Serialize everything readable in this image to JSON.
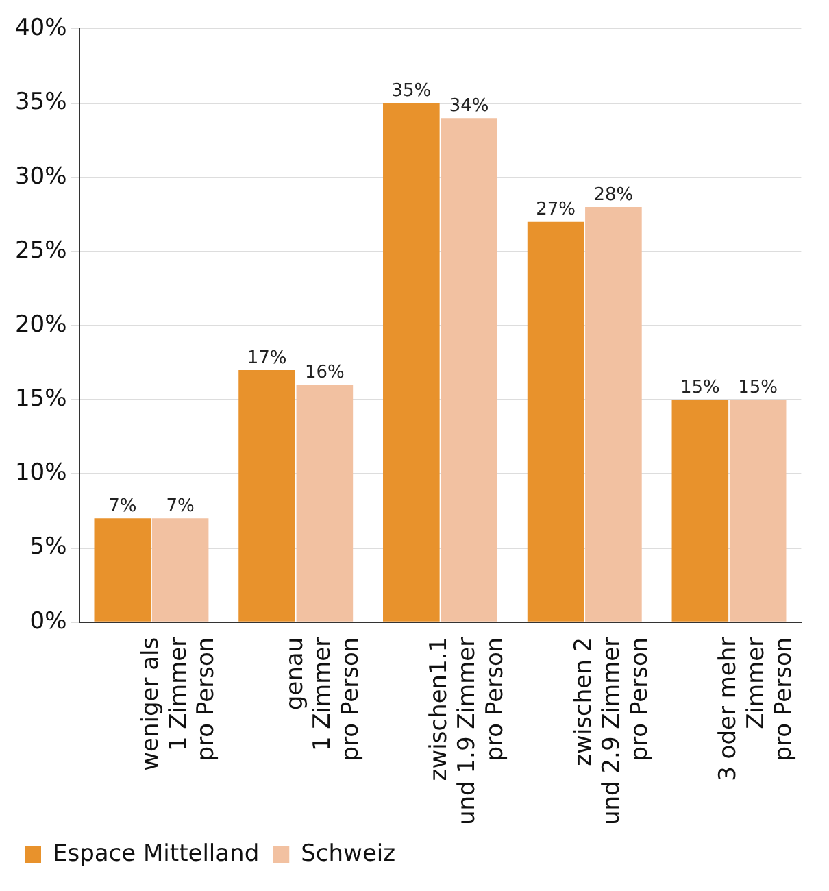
{
  "chart_data": {
    "type": "bar",
    "categories": [
      "weniger als\n1 Zimmer\npro Person",
      "genau\n1 Zimmer\npro Person",
      "zwischen1.1\nund 1.9 Zimmer\npro Person",
      "zwischen 2\nund 2.9 Zimmer\npro Person",
      "3 oder mehr\nZimmer\npro Person"
    ],
    "series": [
      {
        "name": "Espace Mittelland",
        "color": "#e8922c",
        "values": [
          7,
          17,
          35,
          27,
          15
        ],
        "value_labels": [
          "7%",
          "17%",
          "35%",
          "27%",
          "15%"
        ]
      },
      {
        "name": "Schweiz",
        "color": "#f2c1a1",
        "values": [
          7,
          16,
          34,
          28,
          15
        ],
        "value_labels": [
          "7%",
          "16%",
          "34%",
          "28%",
          "15%"
        ]
      }
    ],
    "ylim": [
      0,
      40
    ],
    "yticks": [
      {
        "value": 0,
        "label": "0%"
      },
      {
        "value": 5,
        "label": "5%"
      },
      {
        "value": 10,
        "label": "10%"
      },
      {
        "value": 15,
        "label": "15%"
      },
      {
        "value": 20,
        "label": "20%"
      },
      {
        "value": 25,
        "label": "25%"
      },
      {
        "value": 30,
        "label": "30%"
      },
      {
        "value": 35,
        "label": "35%"
      },
      {
        "value": 40,
        "label": "40%"
      }
    ],
    "grid": "y",
    "legend": "bottom left"
  }
}
